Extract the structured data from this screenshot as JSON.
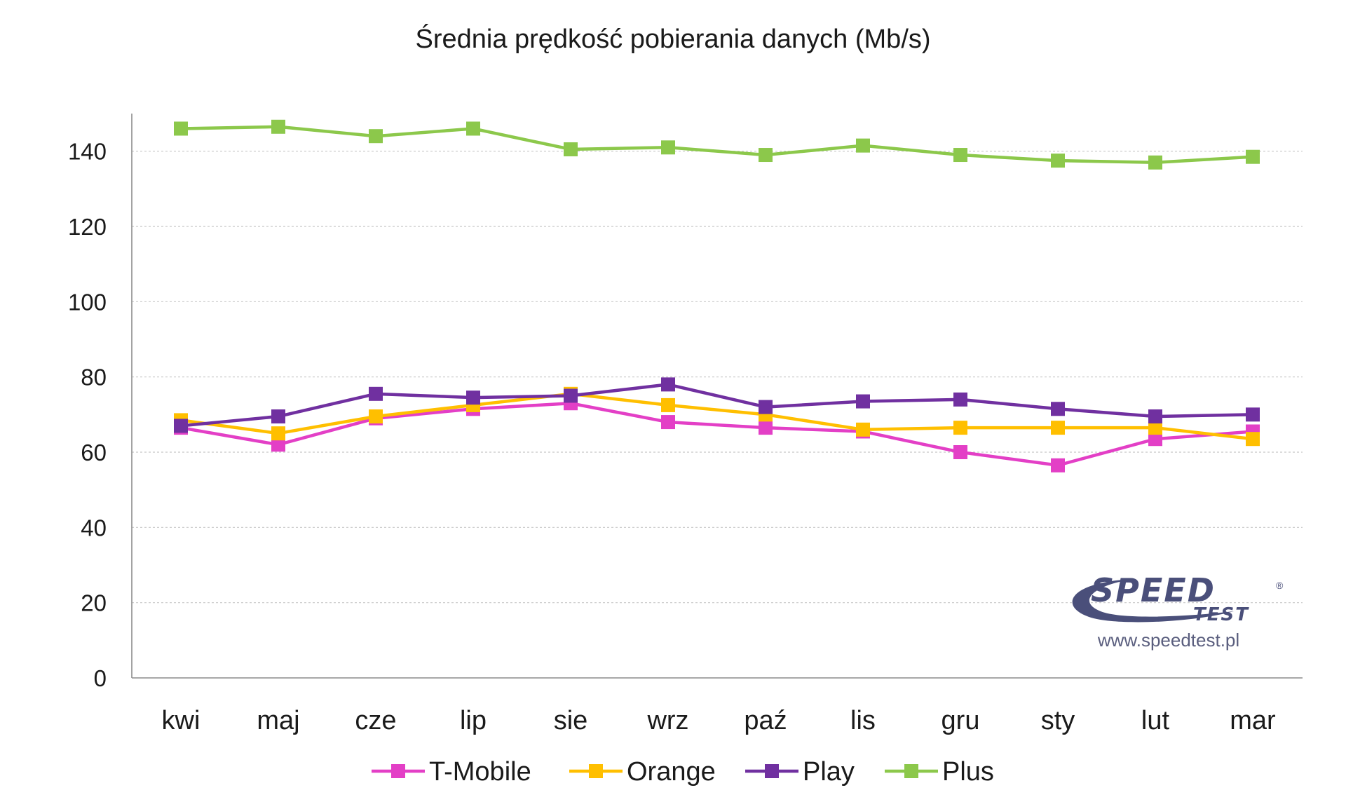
{
  "chart_data": {
    "type": "line",
    "title": "Średnia prędkość pobierania danych (Mb/s)",
    "xlabel": "",
    "ylabel": "",
    "categories": [
      "kwi",
      "maj",
      "cze",
      "lip",
      "sie",
      "wrz",
      "paź",
      "lis",
      "gru",
      "sty",
      "lut",
      "mar"
    ],
    "ylim": [
      0,
      150
    ],
    "yticks": [
      0,
      20,
      40,
      60,
      80,
      100,
      120,
      140
    ],
    "grid": true,
    "legend_position": "bottom",
    "marker": "square",
    "series": [
      {
        "name": "T-Mobile",
        "color": "#e33fc6",
        "values": [
          66.5,
          62.0,
          69.0,
          71.5,
          73.0,
          68.0,
          66.5,
          65.5,
          60.0,
          56.5,
          63.5,
          65.5
        ]
      },
      {
        "name": "Orange",
        "color": "#ffbf00",
        "values": [
          68.5,
          65.0,
          69.5,
          72.5,
          75.5,
          72.5,
          70.0,
          66.0,
          66.5,
          66.5,
          66.5,
          63.5
        ]
      },
      {
        "name": "Play",
        "color": "#7030a0",
        "values": [
          67.0,
          69.5,
          75.5,
          74.5,
          75.0,
          78.0,
          72.0,
          73.5,
          74.0,
          71.5,
          69.5,
          70.0
        ]
      },
      {
        "name": "Plus",
        "color": "#8cc84b",
        "values": [
          146.0,
          146.5,
          144.0,
          146.0,
          140.5,
          141.0,
          139.0,
          141.5,
          139.0,
          137.5,
          137.0,
          138.5
        ]
      }
    ]
  },
  "logo": {
    "word_top": "SPEED",
    "word_bottom": "TEST",
    "registered": "®",
    "url": "www.speedtest.pl",
    "color": "#4a4f7a"
  }
}
